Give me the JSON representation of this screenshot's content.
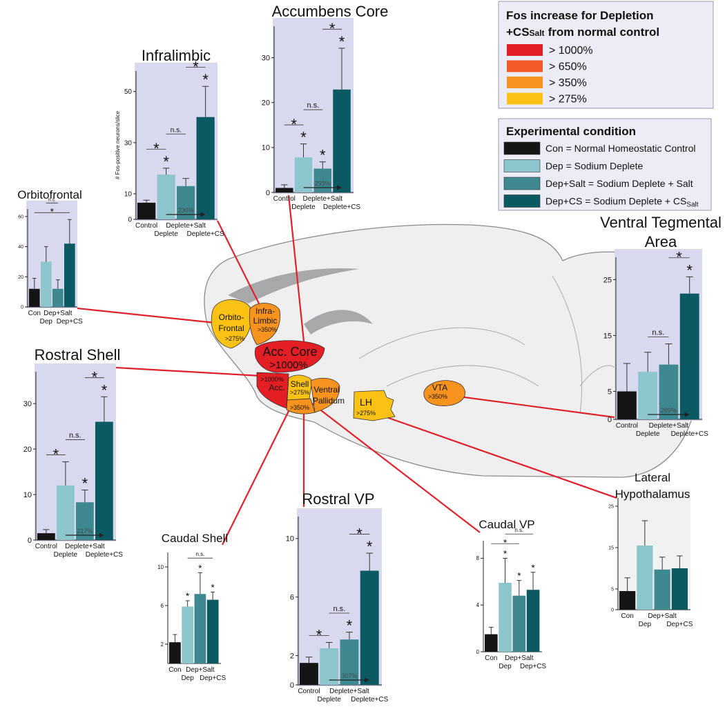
{
  "chart_data": [
    {
      "type": "bar",
      "title": "Orbitofrontal",
      "categories": [
        "Con",
        "Dep",
        "Dep+Salt",
        "Dep+CS"
      ],
      "values": [
        12,
        30,
        12,
        42
      ],
      "errors": [
        7,
        10,
        6,
        16
      ],
      "ylim": [
        0,
        65
      ],
      "yticks": [
        0,
        20,
        40,
        60
      ],
      "comparisons": [
        {
          "from": 0,
          "to": 3,
          "label": "*"
        },
        {
          "from": 1,
          "to": 2,
          "label": "n.s."
        }
      ]
    },
    {
      "type": "bar",
      "title": "Infralimbic",
      "ylabel": "# Fos-positive neurons/slice",
      "categories": [
        "Control",
        "Deplete",
        "Deplete+Salt",
        "Deplete+CS"
      ],
      "values": [
        6.5,
        17.5,
        13,
        40
      ],
      "errors": [
        1,
        2.5,
        3,
        12
      ],
      "ylim": [
        0,
        58
      ],
      "yticks": [
        0,
        10,
        30,
        50
      ],
      "significance": [
        null,
        "*",
        null,
        "*"
      ],
      "comparisons": [
        {
          "from": 0,
          "to": 1,
          "label": "*"
        },
        {
          "from": 1,
          "to": 2,
          "label": "n.s."
        },
        {
          "from": 2,
          "to": 3,
          "label": "*"
        }
      ],
      "annotation": "230%"
    },
    {
      "type": "bar",
      "title": "Accumbens Core",
      "categories": [
        "Control",
        "Deplete",
        "Deplete+Salt",
        "Deplete+CS"
      ],
      "values": [
        1,
        7.8,
        5.3,
        22.9
      ],
      "errors": [
        0.7,
        3,
        1.5,
        9.2
      ],
      "ylim": [
        0,
        37
      ],
      "yticks": [
        0,
        10,
        20,
        30
      ],
      "significance": [
        null,
        "*",
        "*",
        "*"
      ],
      "comparisons": [
        {
          "from": 0,
          "to": 1,
          "label": "*"
        },
        {
          "from": 1,
          "to": 2,
          "label": "n.s."
        },
        {
          "from": 2,
          "to": 3,
          "label": "*"
        }
      ],
      "annotation": "293%"
    },
    {
      "type": "bar",
      "title": "Rostral Shell",
      "categories": [
        "Control",
        "Deplete",
        "Deplete+Salt",
        "Deplete+CS"
      ],
      "values": [
        1.5,
        12,
        8.3,
        26
      ],
      "errors": [
        0.8,
        5.2,
        2.7,
        5.5
      ],
      "ylim": [
        0,
        37
      ],
      "yticks": [
        0,
        10,
        20,
        30
      ],
      "significance": [
        null,
        null,
        "*",
        "*"
      ],
      "comparisons": [
        {
          "from": 0,
          "to": 1,
          "label": "*"
        },
        {
          "from": 1,
          "to": 2,
          "label": "n.s."
        },
        {
          "from": 2,
          "to": 3,
          "label": "*"
        }
      ],
      "annotation": "217%"
    },
    {
      "type": "bar",
      "title": [
        "Ventral Tegmental",
        "Area"
      ],
      "categories": [
        "Control",
        "Deplete",
        "Deplete+Salt",
        "Deplete+CS"
      ],
      "values": [
        5,
        8.5,
        9.8,
        22.5
      ],
      "errors": [
        5,
        3.5,
        3.7,
        3
      ],
      "ylim": [
        0,
        29
      ],
      "yticks": [
        0,
        5,
        15,
        25
      ],
      "significance": [
        null,
        null,
        null,
        "*"
      ],
      "comparisons": [
        {
          "from": 1,
          "to": 2,
          "label": "n.s."
        },
        {
          "from": 2,
          "to": 3,
          "label": "*"
        }
      ],
      "annotation": "269%"
    },
    {
      "type": "bar",
      "title": [
        "Lateral",
        "Hypothalamus"
      ],
      "categories": [
        "Con",
        "Dep",
        "Dep+Salt",
        "Dep+CS"
      ],
      "values": [
        4.5,
        15.5,
        9.7,
        10
      ],
      "errors": [
        3.2,
        6,
        3,
        3
      ],
      "ylim": [
        0,
        27
      ],
      "yticks": [
        0,
        5,
        15,
        25
      ]
    },
    {
      "type": "bar",
      "title": "Caudal VP",
      "categories": [
        "Con",
        "Dep",
        "Dep+Salt",
        "Dep+CS"
      ],
      "values": [
        1.5,
        5.9,
        4.8,
        5.3
      ],
      "errors": [
        0.6,
        2.1,
        1.3,
        1.5
      ],
      "ylim": [
        0,
        9.5
      ],
      "yticks": [
        0,
        4,
        8
      ],
      "significance": [
        null,
        "*",
        "*",
        "*"
      ],
      "comparisons": [
        {
          "from": 0,
          "to": 2,
          "label": "*"
        },
        {
          "from": 1,
          "to": 3,
          "label": "n.s."
        }
      ]
    },
    {
      "type": "bar",
      "title": "Rostral VP",
      "categories": [
        "Control",
        "Deplete",
        "Deplete+Salt",
        "Deplete+CS"
      ],
      "values": [
        1.5,
        2.5,
        3.1,
        7.8
      ],
      "errors": [
        0.4,
        0.4,
        0.5,
        1.2
      ],
      "ylim": [
        0,
        11.5
      ],
      "yticks": [
        0,
        2,
        6,
        10
      ],
      "significance": [
        null,
        null,
        "*",
        "*"
      ],
      "comparisons": [
        {
          "from": 0,
          "to": 1,
          "label": "*"
        },
        {
          "from": 1,
          "to": 2,
          "label": "n.s."
        },
        {
          "from": 2,
          "to": 3,
          "label": "*"
        }
      ],
      "annotation": "307%"
    },
    {
      "type": "bar",
      "title": "Caudal Shell",
      "categories": [
        "Con",
        "Dep",
        "Dep+Salt",
        "Dep+CS"
      ],
      "values": [
        2.2,
        5.9,
        7.2,
        6.6
      ],
      "errors": [
        0.8,
        0.6,
        2.2,
        0.8
      ],
      "ylim": [
        0,
        11.5
      ],
      "yticks": [
        2,
        6,
        10
      ],
      "significance": [
        null,
        "*",
        "*",
        "*"
      ],
      "comparisons": [
        {
          "from": 1,
          "to": 3,
          "label": "n.s."
        }
      ]
    }
  ],
  "legend_fos": {
    "title": [
      "Fos increase for Depletion",
      "+CS",
      "Salt",
      "from normal control"
    ],
    "items": [
      {
        "label": "> 1000%",
        "color": "#e31e25"
      },
      {
        "label": "> 650%",
        "color": "#f15a24"
      },
      {
        "label": "> 350%",
        "color": "#f7931e"
      },
      {
        "label": "> 275%",
        "color": "#fbc216"
      }
    ]
  },
  "legend_condition": {
    "title": "Experimental condition",
    "items": [
      {
        "label": "Con = Normal Homeostatic Control",
        "color": "#151515"
      },
      {
        "label": "Dep = Sodium Deplete",
        "color": "#8cc6cc"
      },
      {
        "label": "Dep+Salt = Sodium Deplete + Salt",
        "color": "#3e8890"
      },
      {
        "label": "Dep+CS = Sodium Deplete + CS",
        "sub": "Salt",
        "color": "#0b5a62"
      }
    ]
  },
  "brain": {
    "regions": [
      {
        "name": [
          "Orbito-",
          "Frontal"
        ],
        "label": ">275%"
      },
      {
        "name": [
          "Infra-",
          "Limbic"
        ],
        "label": ">350%"
      },
      {
        "name": [
          "Acc. Core"
        ],
        "label": ">1000%"
      },
      {
        "name": [
          "Acc."
        ],
        "label": ">1000%"
      },
      {
        "name": [
          "Shell"
        ],
        "label": ">275%"
      },
      {
        "label": ">350%"
      },
      {
        "name": [
          "Ventral",
          "Pallidum"
        ]
      },
      {
        "name": [
          "LH"
        ],
        "label": ">275%"
      },
      {
        "name": [
          "VTA"
        ],
        "label": ">350%"
      }
    ]
  }
}
